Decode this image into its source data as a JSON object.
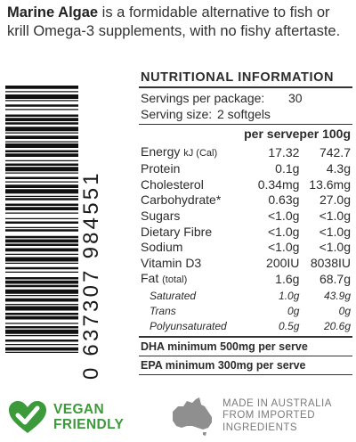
{
  "intro": {
    "brand": "Marine Algae",
    "text": " is a formidable alternative to fish or krill Omega-3 supplements, with no fishy aftertaste."
  },
  "barcode": {
    "digits": "0 637307 984551"
  },
  "nutrition": {
    "title": "NUTRITIONAL INFORMATION",
    "servings_label": "Servings per package:",
    "servings_value": "30",
    "size_label": "Serving size:",
    "size_value": "2 softgels",
    "col_serve": "per serve",
    "col_100g": "per 100g",
    "rows": [
      {
        "name": "Energy",
        "unit": "kJ (Cal)",
        "serve": "17.32",
        "per100": "742.7"
      },
      {
        "name": "Protein",
        "unit": "",
        "serve": "0.1g",
        "per100": "4.3g"
      },
      {
        "name": "Cholesterol",
        "unit": "",
        "serve": "0.34mg",
        "per100": "13.6mg"
      },
      {
        "name": "Carbohydrate*",
        "unit": "",
        "serve": "0.63g",
        "per100": "27.0g"
      },
      {
        "name": "Sugars",
        "unit": "",
        "serve": "<1.0g",
        "per100": "<1.0g"
      },
      {
        "name": "Dietary Fibre",
        "unit": "",
        "serve": "<1.0g",
        "per100": "<1.0g"
      },
      {
        "name": "Sodium",
        "unit": "",
        "serve": "<1.0g",
        "per100": "<1.0g"
      },
      {
        "name": "Vitamin D3",
        "unit": "",
        "serve": "200IU",
        "per100": "8038IU"
      },
      {
        "name": "Fat",
        "unit": "(total)",
        "serve": "1.6g",
        "per100": "68.7g"
      }
    ],
    "fat_subrows": [
      {
        "name": "Saturated",
        "serve": "1.0g",
        "per100": "43.9g"
      },
      {
        "name": "Trans",
        "serve": "0g",
        "per100": "0g"
      },
      {
        "name": "Polyunsaturated",
        "serve": "0.5g",
        "per100": "20.6g"
      }
    ],
    "dha_note": "DHA minimum 500mg per serve",
    "epa_note": "EPA minimum 300mg per serve"
  },
  "badges": {
    "vegan_line1": "VEGAN",
    "vegan_line2": "FRIENDLY",
    "aus_line1": "MADE IN AUSTRALIA",
    "aus_line2": "FROM IMPORTED",
    "aus_line3": "INGREDIENTS",
    "vegan_color": "#3c9a3a",
    "aus_color": "#8a8a8a"
  }
}
